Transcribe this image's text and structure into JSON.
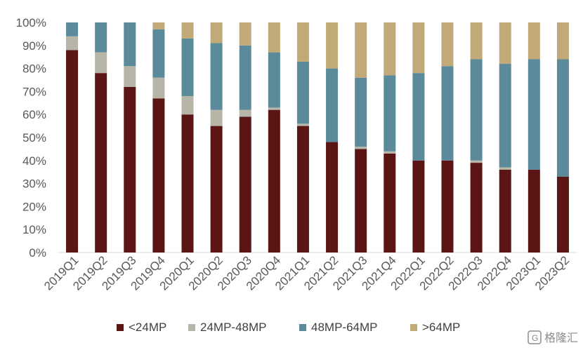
{
  "chart_data": {
    "type": "bar",
    "stacked": true,
    "categories": [
      "2019Q1",
      "2019Q2",
      "2019Q3",
      "2019Q4",
      "2020Q1",
      "2020Q2",
      "2020Q3",
      "2020Q4",
      "2021Q1",
      "2021Q2",
      "2021Q3",
      "2021Q4",
      "2022Q1",
      "2022Q2",
      "2022Q3",
      "2022Q4",
      "2023Q1",
      "2023Q2"
    ],
    "series": [
      {
        "name": "<24MP",
        "color": "#5a1514",
        "values": [
          88,
          78,
          72,
          67,
          60,
          55,
          59,
          62,
          55,
          48,
          45,
          43,
          40,
          40,
          39,
          36,
          36,
          33
        ]
      },
      {
        "name": "24MP-48MP",
        "color": "#b6b5a8",
        "values": [
          6,
          9,
          9,
          9,
          8,
          7,
          3,
          1,
          1,
          0,
          1,
          1,
          0,
          0,
          1,
          1,
          0,
          0
        ]
      },
      {
        "name": "48MP-64MP",
        "color": "#5b8a9a",
        "values": [
          6,
          13,
          19,
          21,
          25,
          29,
          28,
          24,
          27,
          32,
          30,
          33,
          38,
          41,
          44,
          45,
          48,
          51
        ]
      },
      {
        "name": ">64MP",
        "color": "#c2aa78",
        "values": [
          0,
          0,
          0,
          3,
          7,
          9,
          10,
          13,
          17,
          20,
          24,
          23,
          22,
          19,
          16,
          18,
          16,
          16
        ]
      }
    ],
    "yticks": [
      "0%",
      "10%",
      "20%",
      "30%",
      "40%",
      "50%",
      "60%",
      "70%",
      "80%",
      "90%",
      "100%"
    ],
    "ylim": [
      0,
      100
    ],
    "grid": false,
    "legend_position": "bottom"
  },
  "watermark": {
    "text": "格隆汇"
  }
}
